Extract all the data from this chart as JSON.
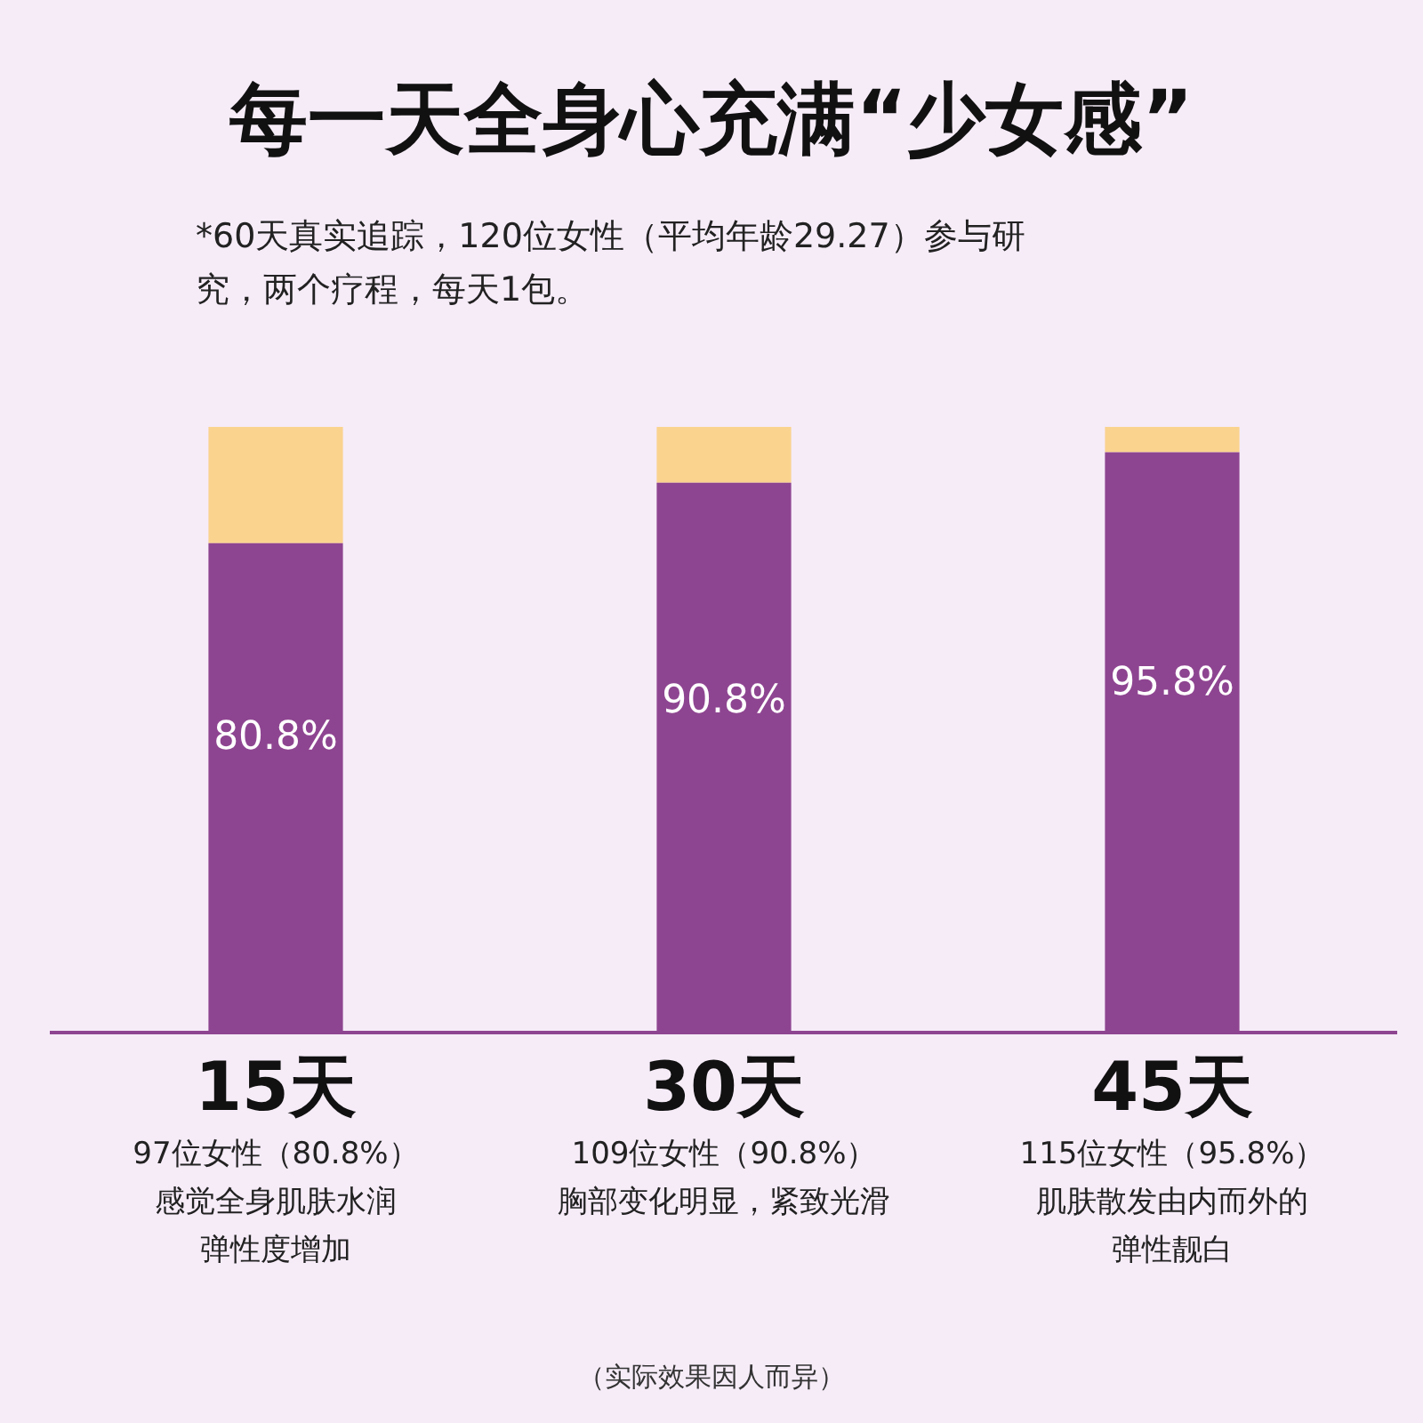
{
  "chart_data": {
    "type": "bar",
    "title": "每一天全身心充满“少女感”",
    "subtitle": "*60天真实追踪，120位女性（平均年龄29.27）参与研究，两个疗程，每天1包。",
    "categories": [
      "15天",
      "30天",
      "45天"
    ],
    "stacked": true,
    "ylim": [
      0,
      100
    ],
    "tick_labels": "x",
    "grid": false,
    "legend": false,
    "series": [
      {
        "color": "#8e4591",
        "values": [
          80.8,
          90.8,
          95.8
        ],
        "value_labels": [
          "80.8%",
          "90.8%",
          "95.8%"
        ]
      },
      {
        "color": "#fad38f",
        "values": [
          19.2,
          9.2,
          4.2
        ]
      }
    ],
    "annotations": [
      "97位女性（80.8%）",
      "109位女性（90.8%）",
      "115位女性（95.8%）",
      "感觉全身肌肤水润弹性度增加",
      "胸部变化明显，紧致光滑",
      "肌肤散发由内而外的弹性靓白",
      "（实际效果因人而异）"
    ]
  }
}
